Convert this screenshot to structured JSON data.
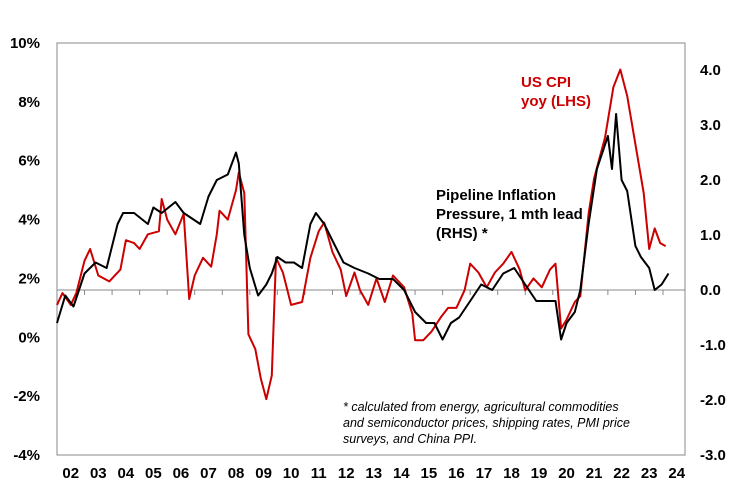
{
  "chart_data": {
    "type": "line",
    "title": "",
    "xlabel": "",
    "ylabel_left": "",
    "ylabel_right": "",
    "x_ticks": [
      "02",
      "03",
      "04",
      "05",
      "06",
      "07",
      "08",
      "09",
      "10",
      "11",
      "12",
      "13",
      "14",
      "15",
      "16",
      "17",
      "18",
      "19",
      "20",
      "21",
      "22",
      "23",
      "24"
    ],
    "left_ticks": [
      "10%",
      "8%",
      "6%",
      "4%",
      "2%",
      "0%",
      "-2%",
      "-4%"
    ],
    "left_tick_values": [
      10,
      8,
      6,
      4,
      2,
      0,
      -2,
      -4
    ],
    "right_ticks": [
      "4.0",
      "3.0",
      "2.0",
      "1.0",
      "0.0",
      "-1.0",
      "-2.0",
      "-3.0"
    ],
    "right_tick_values": [
      4,
      3,
      2,
      1,
      0,
      -1,
      -2,
      -3
    ],
    "xlim": [
      2002,
      2024.8
    ],
    "ylim_left": [
      -4,
      10
    ],
    "ylim_right": [
      -3,
      4.49
    ],
    "grid": false,
    "colors": {
      "cpi": "#cc0000",
      "pipeline": "#000000"
    },
    "series": [
      {
        "name": "US CPI yoy (LHS)",
        "axis": "left",
        "label_lines": [
          "US CPI",
          "yoy (LHS)"
        ],
        "points": [
          [
            2002.0,
            1.1
          ],
          [
            2002.2,
            1.5
          ],
          [
            2002.5,
            1.1
          ],
          [
            2002.7,
            1.5
          ],
          [
            2003.0,
            2.6
          ],
          [
            2003.2,
            3.0
          ],
          [
            2003.5,
            2.1
          ],
          [
            2003.9,
            1.9
          ],
          [
            2004.3,
            2.3
          ],
          [
            2004.5,
            3.3
          ],
          [
            2004.8,
            3.2
          ],
          [
            2005.0,
            3.0
          ],
          [
            2005.3,
            3.5
          ],
          [
            2005.7,
            3.6
          ],
          [
            2005.8,
            4.7
          ],
          [
            2006.0,
            4.0
          ],
          [
            2006.3,
            3.5
          ],
          [
            2006.6,
            4.2
          ],
          [
            2006.8,
            1.3
          ],
          [
            2007.0,
            2.1
          ],
          [
            2007.3,
            2.7
          ],
          [
            2007.6,
            2.4
          ],
          [
            2007.8,
            3.5
          ],
          [
            2007.9,
            4.3
          ],
          [
            2008.2,
            4.0
          ],
          [
            2008.5,
            5.0
          ],
          [
            2008.6,
            5.6
          ],
          [
            2008.8,
            4.9
          ],
          [
            2008.95,
            0.1
          ],
          [
            2009.2,
            -0.4
          ],
          [
            2009.4,
            -1.4
          ],
          [
            2009.6,
            -2.1
          ],
          [
            2009.8,
            -1.3
          ],
          [
            2009.95,
            2.7
          ],
          [
            2010.2,
            2.2
          ],
          [
            2010.5,
            1.1
          ],
          [
            2010.9,
            1.2
          ],
          [
            2011.2,
            2.7
          ],
          [
            2011.5,
            3.6
          ],
          [
            2011.7,
            3.9
          ],
          [
            2012.0,
            2.9
          ],
          [
            2012.3,
            2.3
          ],
          [
            2012.5,
            1.4
          ],
          [
            2012.8,
            2.2
          ],
          [
            2013.0,
            1.6
          ],
          [
            2013.3,
            1.1
          ],
          [
            2013.6,
            2.0
          ],
          [
            2013.9,
            1.2
          ],
          [
            2014.2,
            2.1
          ],
          [
            2014.6,
            1.7
          ],
          [
            2014.9,
            0.8
          ],
          [
            2015.0,
            -0.1
          ],
          [
            2015.3,
            -0.1
          ],
          [
            2015.6,
            0.2
          ],
          [
            2015.95,
            0.7
          ],
          [
            2016.2,
            1.0
          ],
          [
            2016.5,
            1.0
          ],
          [
            2016.8,
            1.6
          ],
          [
            2017.0,
            2.5
          ],
          [
            2017.3,
            2.2
          ],
          [
            2017.6,
            1.7
          ],
          [
            2017.9,
            2.2
          ],
          [
            2018.2,
            2.5
          ],
          [
            2018.5,
            2.9
          ],
          [
            2018.8,
            2.3
          ],
          [
            2019.0,
            1.6
          ],
          [
            2019.3,
            2.0
          ],
          [
            2019.6,
            1.7
          ],
          [
            2019.9,
            2.3
          ],
          [
            2020.1,
            2.5
          ],
          [
            2020.3,
            0.3
          ],
          [
            2020.5,
            0.6
          ],
          [
            2020.8,
            1.2
          ],
          [
            2021.0,
            1.4
          ],
          [
            2021.3,
            4.2
          ],
          [
            2021.5,
            5.4
          ],
          [
            2021.9,
            6.8
          ],
          [
            2022.2,
            8.5
          ],
          [
            2022.45,
            9.1
          ],
          [
            2022.7,
            8.2
          ],
          [
            2022.9,
            7.1
          ],
          [
            2023.1,
            6.0
          ],
          [
            2023.3,
            4.9
          ],
          [
            2023.5,
            3.0
          ],
          [
            2023.7,
            3.7
          ],
          [
            2023.9,
            3.2
          ],
          [
            2024.1,
            3.1
          ]
        ]
      },
      {
        "name": "Pipeline Inflation Pressure, 1 mth lead (RHS) *",
        "axis": "right",
        "label_lines": [
          "Pipeline Inflation",
          "Pressure, 1 mth lead",
          "(RHS) *"
        ],
        "points": [
          [
            2002.0,
            -0.6
          ],
          [
            2002.3,
            -0.1
          ],
          [
            2002.6,
            -0.3
          ],
          [
            2003.0,
            0.3
          ],
          [
            2003.4,
            0.5
          ],
          [
            2003.8,
            0.4
          ],
          [
            2004.2,
            1.2
          ],
          [
            2004.4,
            1.4
          ],
          [
            2004.8,
            1.4
          ],
          [
            2005.3,
            1.2
          ],
          [
            2005.5,
            1.5
          ],
          [
            2005.8,
            1.4
          ],
          [
            2006.3,
            1.6
          ],
          [
            2006.6,
            1.4
          ],
          [
            2006.9,
            1.3
          ],
          [
            2007.2,
            1.2
          ],
          [
            2007.5,
            1.7
          ],
          [
            2007.8,
            2.0
          ],
          [
            2008.2,
            2.1
          ],
          [
            2008.5,
            2.5
          ],
          [
            2008.6,
            2.3
          ],
          [
            2008.8,
            1.0
          ],
          [
            2009.0,
            0.4
          ],
          [
            2009.3,
            -0.1
          ],
          [
            2009.6,
            0.1
          ],
          [
            2009.8,
            0.3
          ],
          [
            2010.0,
            0.6
          ],
          [
            2010.3,
            0.5
          ],
          [
            2010.6,
            0.5
          ],
          [
            2010.9,
            0.4
          ],
          [
            2011.2,
            1.2
          ],
          [
            2011.4,
            1.4
          ],
          [
            2011.7,
            1.2
          ],
          [
            2012.0,
            0.9
          ],
          [
            2012.4,
            0.5
          ],
          [
            2012.8,
            0.4
          ],
          [
            2013.3,
            0.3
          ],
          [
            2013.7,
            0.2
          ],
          [
            2014.2,
            0.2
          ],
          [
            2014.6,
            0.0
          ],
          [
            2015.0,
            -0.4
          ],
          [
            2015.4,
            -0.6
          ],
          [
            2015.7,
            -0.6
          ],
          [
            2016.0,
            -0.9
          ],
          [
            2016.3,
            -0.6
          ],
          [
            2016.6,
            -0.5
          ],
          [
            2017.0,
            -0.2
          ],
          [
            2017.4,
            0.1
          ],
          [
            2017.8,
            0.0
          ],
          [
            2018.2,
            0.3
          ],
          [
            2018.6,
            0.4
          ],
          [
            2019.0,
            0.1
          ],
          [
            2019.4,
            -0.2
          ],
          [
            2019.8,
            -0.2
          ],
          [
            2020.1,
            -0.2
          ],
          [
            2020.3,
            -0.9
          ],
          [
            2020.5,
            -0.6
          ],
          [
            2020.8,
            -0.4
          ],
          [
            2021.0,
            0.0
          ],
          [
            2021.3,
            1.2
          ],
          [
            2021.6,
            2.2
          ],
          [
            2021.8,
            2.5
          ],
          [
            2022.0,
            2.8
          ],
          [
            2022.15,
            2.2
          ],
          [
            2022.3,
            3.2
          ],
          [
            2022.5,
            2.0
          ],
          [
            2022.7,
            1.8
          ],
          [
            2023.0,
            0.8
          ],
          [
            2023.2,
            0.6
          ],
          [
            2023.5,
            0.4
          ],
          [
            2023.7,
            0.0
          ],
          [
            2023.95,
            0.1
          ],
          [
            2024.2,
            0.3
          ]
        ]
      }
    ],
    "annotation": [
      "* calculated from energy, agricultural commodities",
      "and semiconductor prices, shipping rates, PMI price",
      "surveys, and China PPI."
    ]
  }
}
